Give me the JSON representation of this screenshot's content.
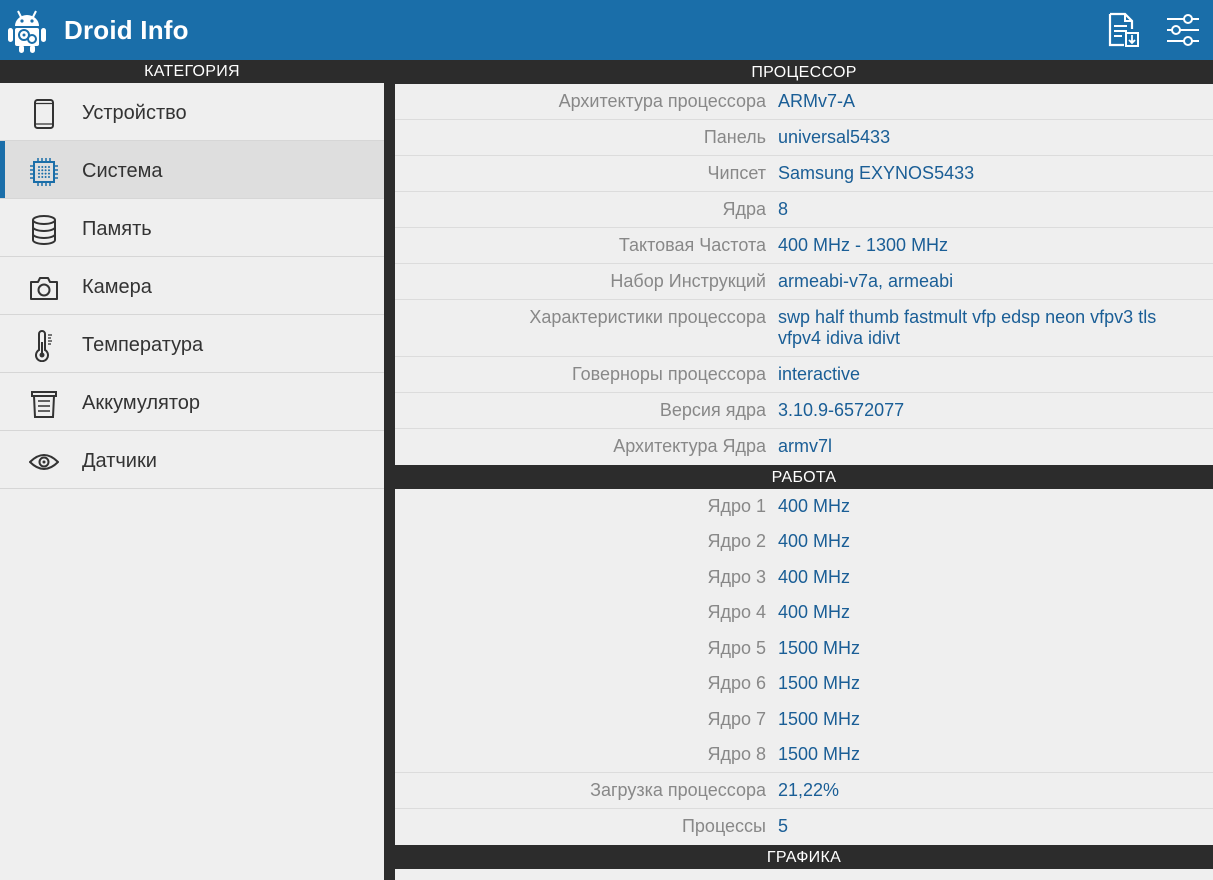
{
  "app": {
    "title": "Droid Info"
  },
  "toolbar": {
    "export_icon": "report-export-icon",
    "settings_icon": "settings-sliders-icon"
  },
  "sidebar": {
    "header": "КАТЕГОРИЯ",
    "items": [
      {
        "label": "Устройство",
        "icon": "phone-icon"
      },
      {
        "label": "Система",
        "icon": "cpu-chip-icon",
        "active": true
      },
      {
        "label": "Память",
        "icon": "database-icon"
      },
      {
        "label": "Камера",
        "icon": "camera-icon"
      },
      {
        "label": "Температура",
        "icon": "thermometer-icon"
      },
      {
        "label": "Аккумулятор",
        "icon": "battery-icon"
      },
      {
        "label": "Датчики",
        "icon": "eye-icon"
      }
    ]
  },
  "sections": {
    "processor": {
      "title": "ПРОЦЕССОР",
      "rows": [
        {
          "key": "Архитектура процессора",
          "value": "ARMv7-A"
        },
        {
          "key": "Панель",
          "value": "universal5433"
        },
        {
          "key": "Чипсет",
          "value": "Samsung EXYNOS5433"
        },
        {
          "key": "Ядра",
          "value": "8"
        },
        {
          "key": "Тактовая Частота",
          "value": "400 MHz - 1300 MHz"
        },
        {
          "key": "Набор Инструкций",
          "value": "armeabi-v7a, armeabi"
        },
        {
          "key": "Характеристики процессора",
          "value": "swp half thumb fastmult vfp edsp neon vfpv3 tls vfpv4 idiva idivt"
        },
        {
          "key": "Говерноры процессора",
          "value": "interactive"
        },
        {
          "key": "Версия ядра",
          "value": "3.10.9-6572077"
        },
        {
          "key": "Архитектура Ядра",
          "value": "armv7l"
        }
      ]
    },
    "work": {
      "title": "РАБОТА",
      "cores": [
        {
          "key": "Ядро 1",
          "value": "400 MHz"
        },
        {
          "key": "Ядро 2",
          "value": "400 MHz"
        },
        {
          "key": "Ядро 3",
          "value": "400 MHz"
        },
        {
          "key": "Ядро 4",
          "value": "400 MHz"
        },
        {
          "key": "Ядро 5",
          "value": "1500 MHz"
        },
        {
          "key": "Ядро 6",
          "value": "1500 MHz"
        },
        {
          "key": "Ядро 7",
          "value": "1500 MHz"
        },
        {
          "key": "Ядро 8",
          "value": "1500 MHz"
        }
      ],
      "rows": [
        {
          "key": "Загрузка процессора",
          "value": "21,22%"
        },
        {
          "key": "Процессы",
          "value": "5"
        }
      ]
    },
    "graphics": {
      "title": "ГРАФИКА"
    }
  }
}
